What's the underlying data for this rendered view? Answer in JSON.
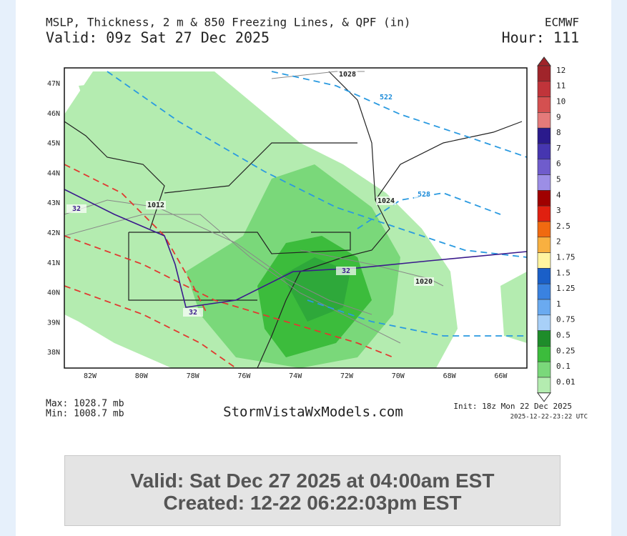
{
  "header": {
    "title": "MSLP, Thickness, 2 m & 850 Freezing Lines, & QPF (in)",
    "model": "ECMWF",
    "valid": "Valid: 09z Sat 27 Dec 2025",
    "hour": "Hour: 111"
  },
  "map": {
    "lat_labels": [
      "47N",
      "46N",
      "45N",
      "44N",
      "43N",
      "42N",
      "41N",
      "40N",
      "39N",
      "38N"
    ],
    "lon_labels": [
      "82W",
      "80W",
      "78W",
      "76W",
      "74W",
      "72W",
      "70W",
      "68W",
      "66W"
    ],
    "annotations": [
      {
        "text": "1028",
        "color": "#222"
      },
      {
        "text": "522",
        "color": "#1a8ad8"
      },
      {
        "text": "528",
        "color": "#1a8ad8"
      },
      {
        "text": "1024",
        "color": "#222"
      },
      {
        "text": "1012",
        "color": "#222"
      },
      {
        "text": "32",
        "color": "#3a1a8c"
      },
      {
        "text": "32",
        "color": "#3a1a8c"
      },
      {
        "text": "32",
        "color": "#3a1a8c"
      },
      {
        "text": "1020",
        "color": "#222"
      }
    ]
  },
  "colorbar": [
    {
      "label": "12",
      "color": "#a0242a"
    },
    {
      "label": "11",
      "color": "#c0343a"
    },
    {
      "label": "10",
      "color": "#d45050"
    },
    {
      "label": "9",
      "color": "#e47a7a"
    },
    {
      "label": "8",
      "color": "#2a1a8c"
    },
    {
      "label": "7",
      "color": "#4636b0"
    },
    {
      "label": "6",
      "color": "#6f5ccc"
    },
    {
      "label": "5",
      "color": "#9c8ee6"
    },
    {
      "label": "4",
      "color": "#a00000"
    },
    {
      "label": "3",
      "color": "#e02010"
    },
    {
      "label": "2.5",
      "color": "#f06a10"
    },
    {
      "label": "2",
      "color": "#f8b040"
    },
    {
      "label": "1.75",
      "color": "#fff4a0"
    },
    {
      "label": "1.5",
      "color": "#1a5fc8"
    },
    {
      "label": "1.25",
      "color": "#3a82e0"
    },
    {
      "label": "1",
      "color": "#6aaaf0"
    },
    {
      "label": "0.75",
      "color": "#a8d0f8"
    },
    {
      "label": "0.5",
      "color": "#1e8c2a"
    },
    {
      "label": "0.25",
      "color": "#3cbc3c"
    },
    {
      "label": "0.1",
      "color": "#7ad87a"
    },
    {
      "label": "0.01",
      "color": "#b4ecb0"
    }
  ],
  "footer": {
    "max": "Max: 1028.7 mb",
    "min": "Min: 1008.7 mb",
    "site": "StormVistaWxModels.com",
    "init": "Init: 18z Mon 22 Dec 2025",
    "stamp": "2025-12-22-23:22 UTC"
  },
  "box": {
    "valid": "Valid: Sat Dec 27 2025 at 04:00am EST",
    "created": "Created: 12-22 06:22:03pm EST"
  }
}
